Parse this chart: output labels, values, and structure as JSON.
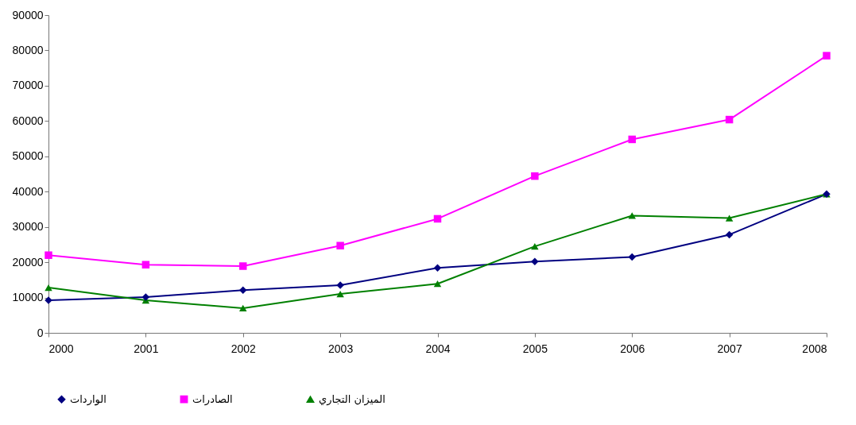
{
  "chart_data": {
    "type": "line",
    "x": [
      2000,
      2001,
      2002,
      2003,
      2004,
      2005,
      2006,
      2007,
      2008
    ],
    "xlim": [
      2000,
      2008
    ],
    "xticks": [
      2000,
      2001,
      2002,
      2003,
      2004,
      2005,
      2006,
      2007,
      2008
    ],
    "ylim": [
      0,
      90000
    ],
    "yticks": [
      0,
      10000,
      20000,
      30000,
      40000,
      50000,
      60000,
      70000,
      80000,
      90000
    ],
    "grid": false,
    "legend": "bottom",
    "series": [
      {
        "name": "الواردات",
        "color": "#000080",
        "marker": "diamond",
        "values": [
          9200,
          10100,
          12100,
          13500,
          18400,
          20200,
          21500,
          27800,
          39300
        ]
      },
      {
        "name": "الصادرات",
        "color": "#ff00ff",
        "marker": "square",
        "values": [
          22000,
          19300,
          18900,
          24700,
          32300,
          44400,
          54800,
          60400,
          78500
        ]
      },
      {
        "name": "الميزان التجاري",
        "color": "#008000",
        "marker": "triangle",
        "values": [
          12800,
          9200,
          7000,
          11000,
          13900,
          24500,
          33200,
          32500,
          39300
        ]
      }
    ]
  }
}
